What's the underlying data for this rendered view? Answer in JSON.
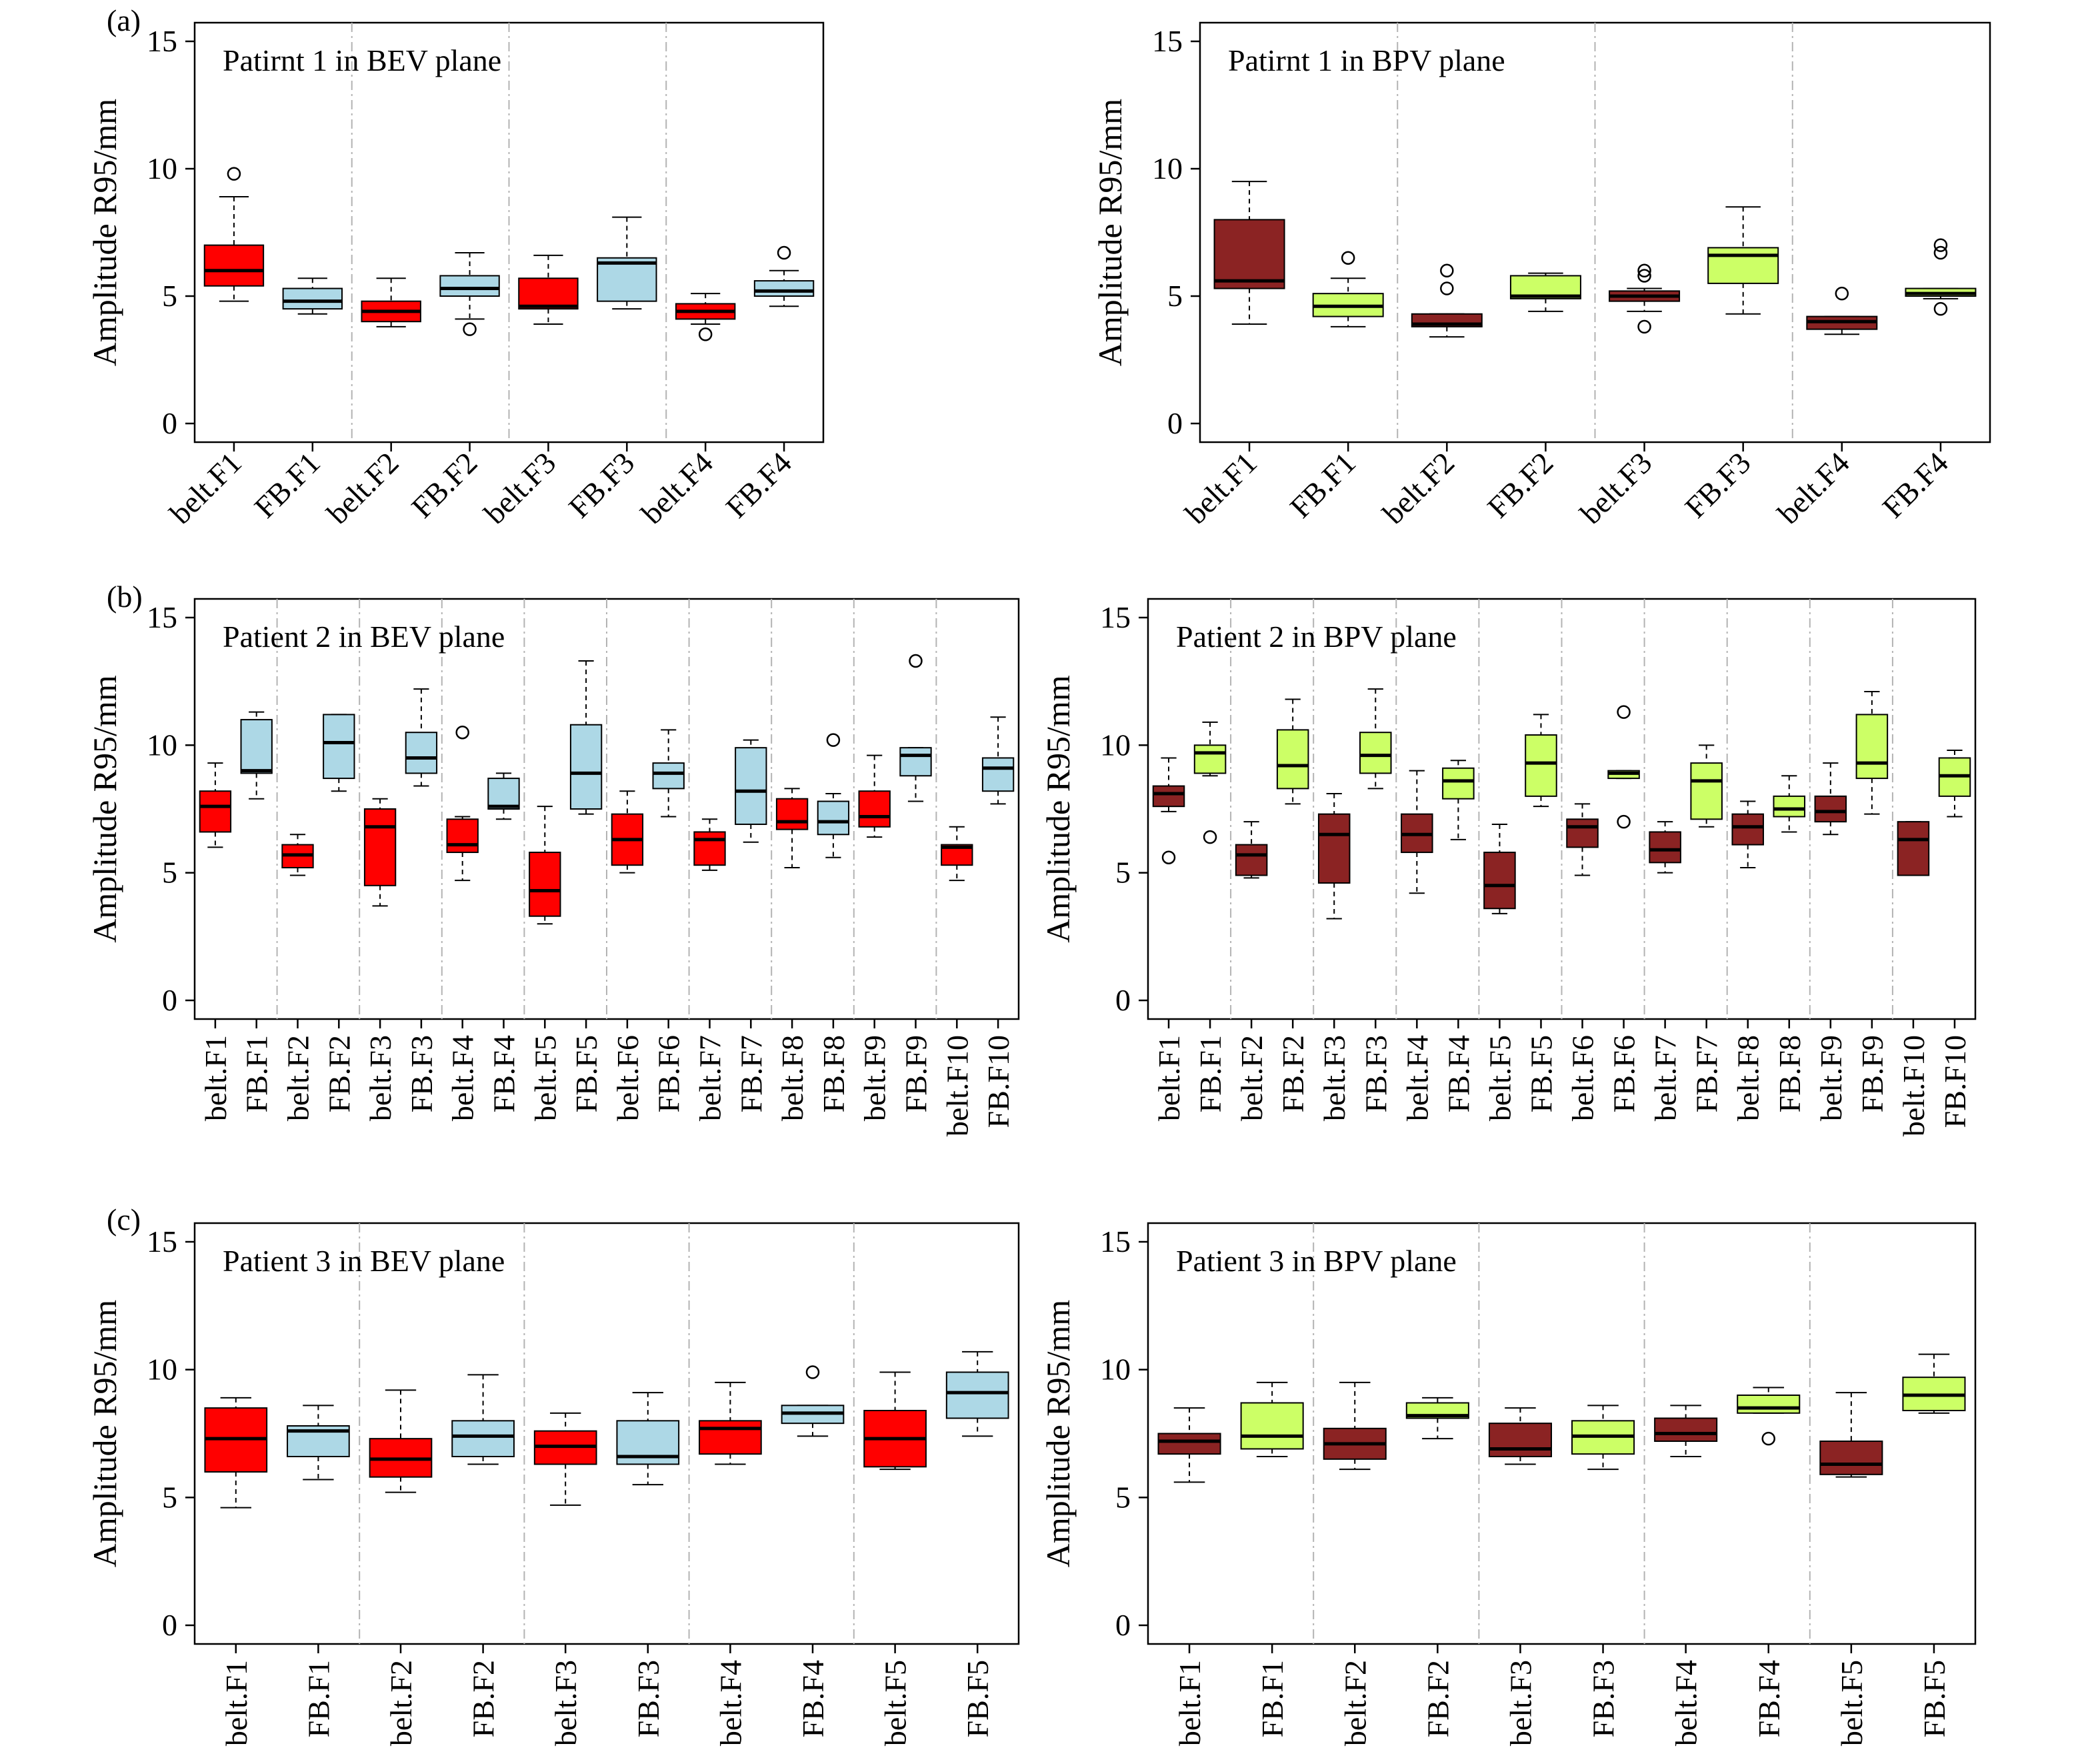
{
  "colors": {
    "bev_belt": "#ff0000",
    "bev_fb": "#add8e6",
    "bpv_belt": "#8b2323",
    "bpv_fb": "#ccff66",
    "separator": "#b3b3b3"
  },
  "panel_labels": [
    "(a)",
    "(b)",
    "(c)"
  ],
  "chart_data": [
    {
      "type": "boxplot",
      "panel": "(a)",
      "title": "Patirnt 1 in BEV plane",
      "ylabel": "Amplitude R95/mm",
      "ylim": [
        0,
        15
      ],
      "yticks": [
        0,
        5,
        10,
        15
      ],
      "categories": [
        "belt.F1",
        "FB.F1",
        "belt.F2",
        "FB.F2",
        "belt.F3",
        "FB.F3",
        "belt.F4",
        "FB.F4"
      ],
      "box_colors": [
        "#ff0000",
        "#add8e6",
        "#ff0000",
        "#add8e6",
        "#ff0000",
        "#add8e6",
        "#ff0000",
        "#add8e6"
      ],
      "groups": 4,
      "boxes": [
        {
          "min": 4.8,
          "q1": 5.4,
          "median": 6.0,
          "q3": 7.0,
          "max": 8.9,
          "outliers": [
            9.8
          ]
        },
        {
          "min": 4.3,
          "q1": 4.5,
          "median": 4.8,
          "q3": 5.3,
          "max": 5.7,
          "outliers": []
        },
        {
          "min": 3.8,
          "q1": 4.0,
          "median": 4.4,
          "q3": 4.8,
          "max": 5.7,
          "outliers": []
        },
        {
          "min": 4.1,
          "q1": 5.0,
          "median": 5.3,
          "q3": 5.8,
          "max": 6.7,
          "outliers": [
            3.7
          ]
        },
        {
          "min": 3.9,
          "q1": 4.5,
          "median": 4.6,
          "q3": 5.7,
          "max": 6.6,
          "outliers": []
        },
        {
          "min": 4.5,
          "q1": 4.8,
          "median": 6.3,
          "q3": 6.5,
          "max": 8.1,
          "outliers": []
        },
        {
          "min": 3.9,
          "q1": 4.1,
          "median": 4.4,
          "q3": 4.7,
          "max": 5.1,
          "outliers": [
            3.5
          ]
        },
        {
          "min": 4.6,
          "q1": 5.0,
          "median": 5.2,
          "q3": 5.6,
          "max": 6.0,
          "outliers": [
            6.7
          ]
        }
      ]
    },
    {
      "type": "boxplot",
      "panel": "",
      "title": "Patirnt 1 in BPV plane",
      "ylabel": "Amplitude R95/mm",
      "ylim": [
        0,
        15
      ],
      "yticks": [
        0,
        5,
        10,
        15
      ],
      "categories": [
        "belt.F1",
        "FB.F1",
        "belt.F2",
        "FB.F2",
        "belt.F3",
        "FB.F3",
        "belt.F4",
        "FB.F4"
      ],
      "box_colors": [
        "#8b2323",
        "#ccff66",
        "#8b2323",
        "#ccff66",
        "#8b2323",
        "#ccff66",
        "#8b2323",
        "#ccff66"
      ],
      "groups": 4,
      "boxes": [
        {
          "min": 3.9,
          "q1": 5.3,
          "median": 5.6,
          "q3": 8.0,
          "max": 9.5,
          "outliers": []
        },
        {
          "min": 3.8,
          "q1": 4.2,
          "median": 4.6,
          "q3": 5.1,
          "max": 5.7,
          "outliers": [
            6.5
          ]
        },
        {
          "min": 3.4,
          "q1": 3.8,
          "median": 3.9,
          "q3": 4.3,
          "max": 4.3,
          "outliers": [
            5.3,
            6.0
          ]
        },
        {
          "min": 4.4,
          "q1": 4.9,
          "median": 5.0,
          "q3": 5.8,
          "max": 5.9,
          "outliers": []
        },
        {
          "min": 4.4,
          "q1": 4.8,
          "median": 5.0,
          "q3": 5.2,
          "max": 5.3,
          "outliers": [
            3.8,
            5.8,
            6.0
          ]
        },
        {
          "min": 4.3,
          "q1": 5.5,
          "median": 6.6,
          "q3": 6.9,
          "max": 8.5,
          "outliers": []
        },
        {
          "min": 3.5,
          "q1": 3.7,
          "median": 4.0,
          "q3": 4.2,
          "max": 4.2,
          "outliers": [
            5.1
          ]
        },
        {
          "min": 4.9,
          "q1": 5.0,
          "median": 5.1,
          "q3": 5.3,
          "max": 5.3,
          "outliers": [
            4.5,
            6.7,
            7.0
          ]
        }
      ]
    },
    {
      "type": "boxplot",
      "panel": "(b)",
      "title": "Patient 2 in BEV plane",
      "ylabel": "Amplitude R95/mm",
      "ylim": [
        0,
        15
      ],
      "yticks": [
        0,
        5,
        10,
        15
      ],
      "categories": [
        "belt.F1",
        "FB.F1",
        "belt.F2",
        "FB.F2",
        "belt.F3",
        "FB.F3",
        "belt.F4",
        "FB.F4",
        "belt.F5",
        "FB.F5",
        "belt.F6",
        "FB.F6",
        "belt.F7",
        "FB.F7",
        "belt.F8",
        "FB.F8",
        "belt.F9",
        "FB.F9",
        "belt.F10",
        "FB.F10"
      ],
      "box_colors": [
        "#ff0000",
        "#add8e6",
        "#ff0000",
        "#add8e6",
        "#ff0000",
        "#add8e6",
        "#ff0000",
        "#add8e6",
        "#ff0000",
        "#add8e6",
        "#ff0000",
        "#add8e6",
        "#ff0000",
        "#add8e6",
        "#ff0000",
        "#add8e6",
        "#ff0000",
        "#add8e6",
        "#ff0000",
        "#add8e6"
      ],
      "groups": 10,
      "boxes": [
        {
          "min": 6.0,
          "q1": 6.6,
          "median": 7.6,
          "q3": 8.2,
          "max": 9.3,
          "outliers": []
        },
        {
          "min": 7.9,
          "q1": 8.9,
          "median": 9.0,
          "q3": 11.0,
          "max": 11.3,
          "outliers": []
        },
        {
          "min": 4.9,
          "q1": 5.2,
          "median": 5.7,
          "q3": 6.1,
          "max": 6.5,
          "outliers": []
        },
        {
          "min": 8.2,
          "q1": 8.7,
          "median": 10.1,
          "q3": 11.2,
          "max": 11.2,
          "outliers": []
        },
        {
          "min": 3.7,
          "q1": 4.5,
          "median": 6.8,
          "q3": 7.5,
          "max": 7.9,
          "outliers": []
        },
        {
          "min": 8.4,
          "q1": 8.9,
          "median": 9.5,
          "q3": 10.5,
          "max": 12.2,
          "outliers": []
        },
        {
          "min": 4.7,
          "q1": 5.8,
          "median": 6.1,
          "q3": 7.1,
          "max": 7.2,
          "outliers": [
            10.5
          ]
        },
        {
          "min": 7.1,
          "q1": 7.5,
          "median": 7.6,
          "q3": 8.7,
          "max": 8.9,
          "outliers": []
        },
        {
          "min": 3.0,
          "q1": 3.3,
          "median": 4.3,
          "q3": 5.8,
          "max": 7.6,
          "outliers": []
        },
        {
          "min": 7.3,
          "q1": 7.5,
          "median": 8.9,
          "q3": 10.8,
          "max": 13.3,
          "outliers": []
        },
        {
          "min": 5.0,
          "q1": 5.3,
          "median": 6.3,
          "q3": 7.3,
          "max": 8.2,
          "outliers": []
        },
        {
          "min": 7.2,
          "q1": 8.3,
          "median": 8.9,
          "q3": 9.3,
          "max": 10.6,
          "outliers": []
        },
        {
          "min": 5.1,
          "q1": 5.3,
          "median": 6.3,
          "q3": 6.6,
          "max": 7.1,
          "outliers": []
        },
        {
          "min": 6.2,
          "q1": 6.9,
          "median": 8.2,
          "q3": 9.9,
          "max": 10.2,
          "outliers": []
        },
        {
          "min": 5.2,
          "q1": 6.7,
          "median": 7.0,
          "q3": 7.9,
          "max": 8.3,
          "outliers": []
        },
        {
          "min": 5.6,
          "q1": 6.5,
          "median": 7.0,
          "q3": 7.8,
          "max": 8.1,
          "outliers": [
            10.2
          ]
        },
        {
          "min": 6.4,
          "q1": 6.8,
          "median": 7.2,
          "q3": 8.2,
          "max": 9.6,
          "outliers": []
        },
        {
          "min": 7.8,
          "q1": 8.8,
          "median": 9.6,
          "q3": 9.9,
          "max": 9.9,
          "outliers": [
            13.3
          ]
        },
        {
          "min": 4.7,
          "q1": 5.3,
          "median": 6.0,
          "q3": 6.1,
          "max": 6.8,
          "outliers": []
        },
        {
          "min": 7.7,
          "q1": 8.2,
          "median": 9.1,
          "q3": 9.5,
          "max": 11.1,
          "outliers": []
        }
      ]
    },
    {
      "type": "boxplot",
      "panel": "",
      "title": "Patient 2 in BPV plane",
      "ylabel": "Amplitude R95/mm",
      "ylim": [
        0,
        15
      ],
      "yticks": [
        0,
        5,
        10,
        15
      ],
      "categories": [
        "belt.F1",
        "FB.F1",
        "belt.F2",
        "FB.F2",
        "belt.F3",
        "FB.F3",
        "belt.F4",
        "FB.F4",
        "belt.F5",
        "FB.F5",
        "belt.F6",
        "FB.F6",
        "belt.F7",
        "FB.F7",
        "belt.F8",
        "FB.F8",
        "belt.F9",
        "FB.F9",
        "belt.F10",
        "FB.F10"
      ],
      "box_colors": [
        "#8b2323",
        "#ccff66",
        "#8b2323",
        "#ccff66",
        "#8b2323",
        "#ccff66",
        "#8b2323",
        "#ccff66",
        "#8b2323",
        "#ccff66",
        "#8b2323",
        "#ccff66",
        "#8b2323",
        "#ccff66",
        "#8b2323",
        "#ccff66",
        "#8b2323",
        "#ccff66",
        "#8b2323",
        "#ccff66"
      ],
      "groups": 10,
      "boxes": [
        {
          "min": 7.4,
          "q1": 7.6,
          "median": 8.1,
          "q3": 8.4,
          "max": 9.5,
          "outliers": [
            5.6
          ]
        },
        {
          "min": 8.8,
          "q1": 8.9,
          "median": 9.7,
          "q3": 10.0,
          "max": 10.9,
          "outliers": [
            6.4
          ]
        },
        {
          "min": 4.8,
          "q1": 4.9,
          "median": 5.7,
          "q3": 6.1,
          "max": 7.0,
          "outliers": []
        },
        {
          "min": 7.7,
          "q1": 8.3,
          "median": 9.2,
          "q3": 10.6,
          "max": 11.8,
          "outliers": []
        },
        {
          "min": 3.2,
          "q1": 4.6,
          "median": 6.5,
          "q3": 7.3,
          "max": 8.1,
          "outliers": []
        },
        {
          "min": 8.3,
          "q1": 8.9,
          "median": 9.6,
          "q3": 10.5,
          "max": 12.2,
          "outliers": []
        },
        {
          "min": 4.2,
          "q1": 5.8,
          "median": 6.5,
          "q3": 7.3,
          "max": 9.0,
          "outliers": []
        },
        {
          "min": 6.3,
          "q1": 7.9,
          "median": 8.6,
          "q3": 9.1,
          "max": 9.4,
          "outliers": []
        },
        {
          "min": 3.4,
          "q1": 3.6,
          "median": 4.5,
          "q3": 5.8,
          "max": 6.9,
          "outliers": []
        },
        {
          "min": 7.6,
          "q1": 8.0,
          "median": 9.3,
          "q3": 10.4,
          "max": 11.2,
          "outliers": []
        },
        {
          "min": 4.9,
          "q1": 6.0,
          "median": 6.8,
          "q3": 7.1,
          "max": 7.7,
          "outliers": []
        },
        {
          "min": 8.7,
          "q1": 8.7,
          "median": 8.9,
          "q3": 9.0,
          "max": 9.0,
          "outliers": [
            7.0,
            11.3
          ]
        },
        {
          "min": 5.0,
          "q1": 5.4,
          "median": 5.9,
          "q3": 6.6,
          "max": 7.0,
          "outliers": []
        },
        {
          "min": 6.8,
          "q1": 7.1,
          "median": 8.6,
          "q3": 9.3,
          "max": 10.0,
          "outliers": []
        },
        {
          "min": 5.2,
          "q1": 6.1,
          "median": 6.8,
          "q3": 7.3,
          "max": 7.8,
          "outliers": []
        },
        {
          "min": 6.6,
          "q1": 7.2,
          "median": 7.5,
          "q3": 8.0,
          "max": 8.8,
          "outliers": []
        },
        {
          "min": 6.5,
          "q1": 7.0,
          "median": 7.4,
          "q3": 8.0,
          "max": 9.3,
          "outliers": []
        },
        {
          "min": 7.3,
          "q1": 8.7,
          "median": 9.3,
          "q3": 11.2,
          "max": 12.1,
          "outliers": []
        },
        {
          "min": 4.9,
          "q1": 4.9,
          "median": 6.3,
          "q3": 7.0,
          "max": 7.0,
          "outliers": []
        },
        {
          "min": 7.2,
          "q1": 8.0,
          "median": 8.8,
          "q3": 9.5,
          "max": 9.8,
          "outliers": []
        }
      ]
    },
    {
      "type": "boxplot",
      "panel": "(c)",
      "title": "Patient 3 in BEV plane",
      "ylabel": "Amplitude R95/mm",
      "ylim": [
        0,
        15
      ],
      "yticks": [
        0,
        5,
        10,
        15
      ],
      "categories": [
        "belt.F1",
        "FB.F1",
        "belt.F2",
        "FB.F2",
        "belt.F3",
        "FB.F3",
        "belt.F4",
        "FB.F4",
        "belt.F5",
        "FB.F5"
      ],
      "box_colors": [
        "#ff0000",
        "#add8e6",
        "#ff0000",
        "#add8e6",
        "#ff0000",
        "#add8e6",
        "#ff0000",
        "#add8e6",
        "#ff0000",
        "#add8e6"
      ],
      "groups": 5,
      "boxes": [
        {
          "min": 4.6,
          "q1": 6.0,
          "median": 7.3,
          "q3": 8.5,
          "max": 8.9,
          "outliers": []
        },
        {
          "min": 5.7,
          "q1": 6.6,
          "median": 7.6,
          "q3": 7.8,
          "max": 8.6,
          "outliers": []
        },
        {
          "min": 5.2,
          "q1": 5.8,
          "median": 6.5,
          "q3": 7.3,
          "max": 9.2,
          "outliers": []
        },
        {
          "min": 6.3,
          "q1": 6.6,
          "median": 7.4,
          "q3": 8.0,
          "max": 9.8,
          "outliers": []
        },
        {
          "min": 4.7,
          "q1": 6.3,
          "median": 7.0,
          "q3": 7.6,
          "max": 8.3,
          "outliers": []
        },
        {
          "min": 5.5,
          "q1": 6.3,
          "median": 6.6,
          "q3": 8.0,
          "max": 9.1,
          "outliers": []
        },
        {
          "min": 6.3,
          "q1": 6.7,
          "median": 7.7,
          "q3": 8.0,
          "max": 9.5,
          "outliers": []
        },
        {
          "min": 7.4,
          "q1": 7.9,
          "median": 8.3,
          "q3": 8.6,
          "max": 8.6,
          "outliers": [
            9.9
          ]
        },
        {
          "min": 6.1,
          "q1": 6.2,
          "median": 7.3,
          "q3": 8.4,
          "max": 9.9,
          "outliers": []
        },
        {
          "min": 7.4,
          "q1": 8.1,
          "median": 9.1,
          "q3": 9.9,
          "max": 10.7,
          "outliers": []
        }
      ]
    },
    {
      "type": "boxplot",
      "panel": "",
      "title": "Patient 3 in BPV plane",
      "ylabel": "Amplitude R95/mm",
      "ylim": [
        0,
        15
      ],
      "yticks": [
        0,
        5,
        10,
        15
      ],
      "categories": [
        "belt.F1",
        "FB.F1",
        "belt.F2",
        "FB.F2",
        "belt.F3",
        "FB.F3",
        "belt.F4",
        "FB.F4",
        "belt.F5",
        "FB.F5"
      ],
      "box_colors": [
        "#8b2323",
        "#ccff66",
        "#8b2323",
        "#ccff66",
        "#8b2323",
        "#ccff66",
        "#8b2323",
        "#ccff66",
        "#8b2323",
        "#ccff66"
      ],
      "groups": 5,
      "boxes": [
        {
          "min": 5.6,
          "q1": 6.7,
          "median": 7.2,
          "q3": 7.5,
          "max": 8.5,
          "outliers": []
        },
        {
          "min": 6.6,
          "q1": 6.9,
          "median": 7.4,
          "q3": 8.7,
          "max": 9.5,
          "outliers": []
        },
        {
          "min": 6.1,
          "q1": 6.5,
          "median": 7.1,
          "q3": 7.7,
          "max": 9.5,
          "outliers": []
        },
        {
          "min": 7.3,
          "q1": 8.1,
          "median": 8.2,
          "q3": 8.7,
          "max": 8.9,
          "outliers": []
        },
        {
          "min": 6.3,
          "q1": 6.6,
          "median": 6.9,
          "q3": 7.9,
          "max": 8.5,
          "outliers": []
        },
        {
          "min": 6.1,
          "q1": 6.7,
          "median": 7.4,
          "q3": 8.0,
          "max": 8.6,
          "outliers": []
        },
        {
          "min": 6.6,
          "q1": 7.2,
          "median": 7.5,
          "q3": 8.1,
          "max": 8.6,
          "outliers": []
        },
        {
          "min": 8.3,
          "q1": 8.3,
          "median": 8.5,
          "q3": 9.0,
          "max": 9.3,
          "outliers": [
            7.3
          ]
        },
        {
          "min": 5.8,
          "q1": 5.9,
          "median": 6.3,
          "q3": 7.2,
          "max": 9.1,
          "outliers": []
        },
        {
          "min": 8.3,
          "q1": 8.4,
          "median": 9.0,
          "q3": 9.7,
          "max": 10.6,
          "outliers": []
        }
      ]
    }
  ]
}
